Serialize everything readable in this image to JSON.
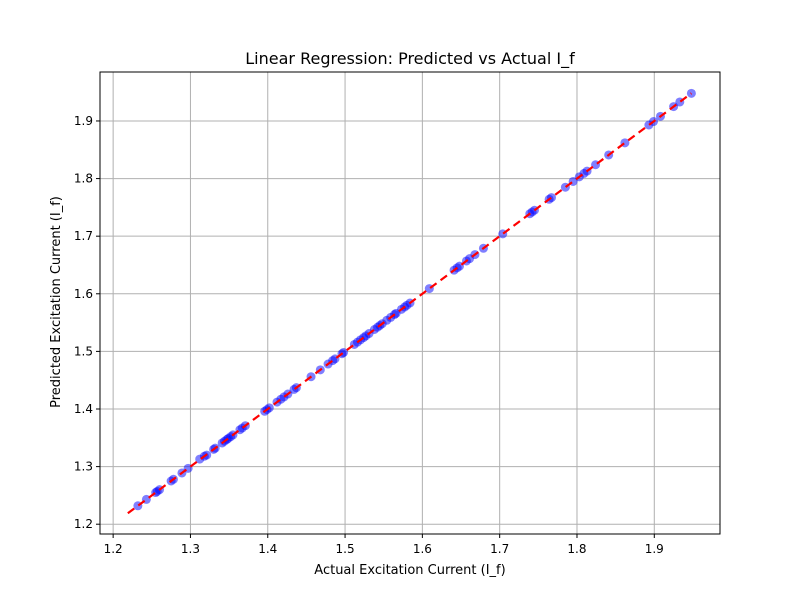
{
  "chart_data": {
    "type": "scatter",
    "title": "Linear Regression: Predicted vs Actual I_f",
    "xlabel": "Actual Excitation Current (I_f)",
    "ylabel": "Predicted Excitation Current (I_f)",
    "xlim": [
      1.183,
      1.985
    ],
    "ylim": [
      1.183,
      1.985
    ],
    "xticks": [
      "1.2",
      "1.3",
      "1.4",
      "1.5",
      "1.6",
      "1.7",
      "1.8",
      "1.9"
    ],
    "yticks": [
      "1.2",
      "1.3",
      "1.4",
      "1.5",
      "1.6",
      "1.7",
      "1.8",
      "1.9"
    ],
    "grid": true,
    "points": [
      [
        1.232,
        1.232
      ],
      [
        1.243,
        1.243
      ],
      [
        1.255,
        1.255
      ],
      [
        1.257,
        1.257
      ],
      [
        1.26,
        1.26
      ],
      [
        1.275,
        1.275
      ],
      [
        1.278,
        1.278
      ],
      [
        1.289,
        1.289
      ],
      [
        1.297,
        1.297
      ],
      [
        1.312,
        1.313
      ],
      [
        1.318,
        1.318
      ],
      [
        1.321,
        1.32
      ],
      [
        1.33,
        1.33
      ],
      [
        1.332,
        1.332
      ],
      [
        1.341,
        1.341
      ],
      [
        1.344,
        1.344
      ],
      [
        1.347,
        1.347
      ],
      [
        1.349,
        1.349
      ],
      [
        1.352,
        1.352
      ],
      [
        1.355,
        1.355
      ],
      [
        1.364,
        1.364
      ],
      [
        1.367,
        1.367
      ],
      [
        1.371,
        1.371
      ],
      [
        1.396,
        1.396
      ],
      [
        1.399,
        1.399
      ],
      [
        1.402,
        1.402
      ],
      [
        1.412,
        1.412
      ],
      [
        1.417,
        1.417
      ],
      [
        1.421,
        1.421
      ],
      [
        1.426,
        1.426
      ],
      [
        1.434,
        1.434
      ],
      [
        1.437,
        1.437
      ],
      [
        1.456,
        1.456
      ],
      [
        1.468,
        1.468
      ],
      [
        1.478,
        1.478
      ],
      [
        1.484,
        1.484
      ],
      [
        1.487,
        1.487
      ],
      [
        1.496,
        1.496
      ],
      [
        1.498,
        1.498
      ],
      [
        1.512,
        1.512
      ],
      [
        1.516,
        1.516
      ],
      [
        1.52,
        1.52
      ],
      [
        1.524,
        1.524
      ],
      [
        1.527,
        1.527
      ],
      [
        1.531,
        1.531
      ],
      [
        1.538,
        1.538
      ],
      [
        1.542,
        1.542
      ],
      [
        1.545,
        1.545
      ],
      [
        1.548,
        1.548
      ],
      [
        1.554,
        1.554
      ],
      [
        1.559,
        1.559
      ],
      [
        1.564,
        1.564
      ],
      [
        1.566,
        1.566
      ],
      [
        1.573,
        1.573
      ],
      [
        1.577,
        1.577
      ],
      [
        1.58,
        1.58
      ],
      [
        1.584,
        1.584
      ],
      [
        1.609,
        1.609
      ],
      [
        1.641,
        1.641
      ],
      [
        1.645,
        1.645
      ],
      [
        1.648,
        1.648
      ],
      [
        1.657,
        1.657
      ],
      [
        1.661,
        1.661
      ],
      [
        1.668,
        1.668
      ],
      [
        1.679,
        1.679
      ],
      [
        1.704,
        1.704
      ],
      [
        1.739,
        1.739
      ],
      [
        1.742,
        1.742
      ],
      [
        1.745,
        1.745
      ],
      [
        1.764,
        1.764
      ],
      [
        1.767,
        1.767
      ],
      [
        1.785,
        1.785
      ],
      [
        1.795,
        1.795
      ],
      [
        1.803,
        1.803
      ],
      [
        1.809,
        1.809
      ],
      [
        1.813,
        1.813
      ],
      [
        1.824,
        1.824
      ],
      [
        1.841,
        1.841
      ],
      [
        1.862,
        1.862
      ],
      [
        1.893,
        1.893
      ],
      [
        1.899,
        1.899
      ],
      [
        1.908,
        1.908
      ],
      [
        1.925,
        1.925
      ],
      [
        1.933,
        1.933
      ],
      [
        1.948,
        1.948
      ]
    ],
    "fit_line": {
      "x": [
        1.219,
        1.948
      ],
      "y": [
        1.219,
        1.948
      ]
    },
    "colors": {
      "point_fill": "#0000ff",
      "point_alpha": 0.5,
      "fit_line": "#ff0000",
      "grid": "#b0b0b0",
      "axes": "#000000"
    }
  }
}
